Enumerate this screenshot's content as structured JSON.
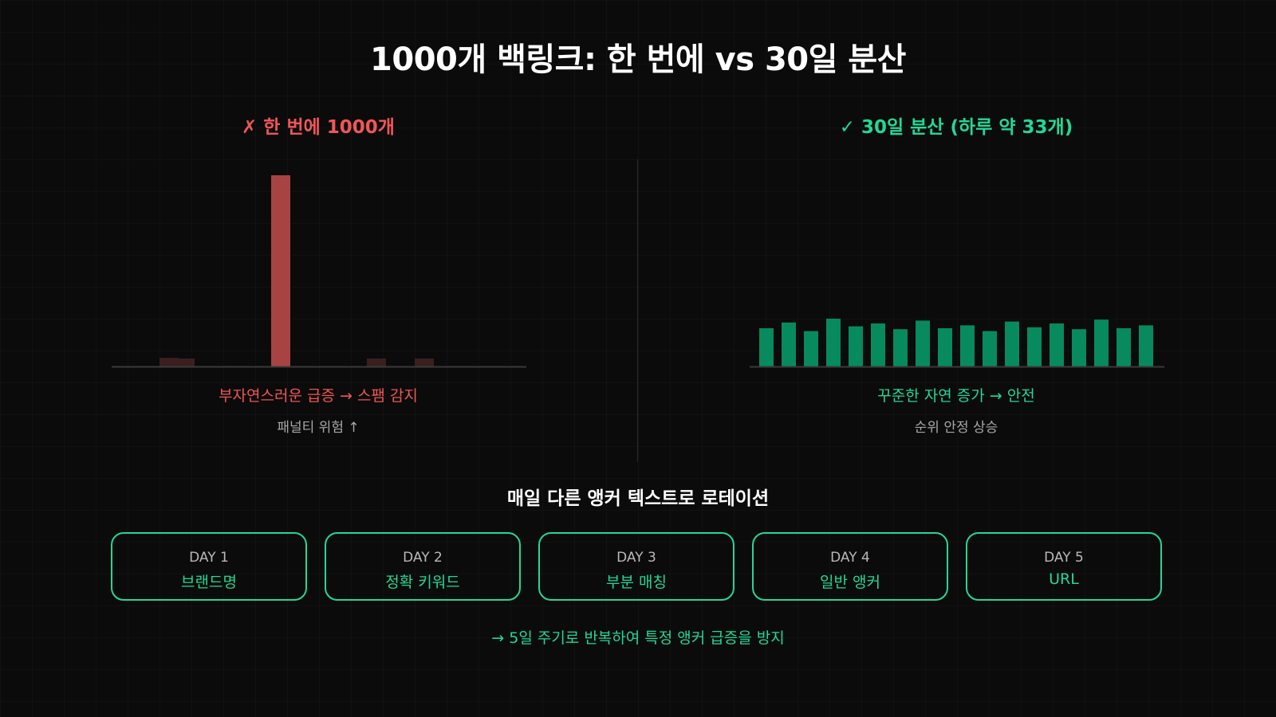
{
  "title": "1000개 백링크: 한 번에 vs 30일 분산",
  "left": {
    "heading": "✗ 한 번에 1000개",
    "caption": "부자연스러운 급증 → 스팸 감지",
    "subcaption": "패널티 위험 ↑"
  },
  "right": {
    "heading": "✓ 30일 분산 (하루 약 33개)",
    "caption": "꾸준한 자연 증가 → 안전",
    "subcaption": "순위 안정 상승"
  },
  "rotation": {
    "title": "매일 다른 앵커 텍스트로 로테이션",
    "days": [
      {
        "label": "DAY 1",
        "value": "브랜드명"
      },
      {
        "label": "DAY 2",
        "value": "정확 키워드"
      },
      {
        "label": "DAY 3",
        "value": "부분 매칭"
      },
      {
        "label": "DAY 4",
        "value": "일반 앵커"
      },
      {
        "label": "DAY 5",
        "value": "URL"
      }
    ],
    "footer": "→ 5일 주기로 반복하여 특정 앵커 급증을 방지"
  },
  "colors": {
    "bad": "#f05656",
    "bad_bar": "#a84343",
    "bad_bar_faint": "#3b1f1f",
    "good": "#22d897",
    "good_bar": "#078a5e",
    "axis": "#3a3a3a"
  },
  "chart_data": [
    {
      "type": "bar",
      "title": "✗ 한 번에 1000개",
      "ylim": [
        0,
        1000
      ],
      "values": [
        0,
        0,
        0,
        45,
        30,
        0,
        0,
        0,
        0,
        0,
        1000,
        0,
        0,
        0,
        0,
        0,
        35,
        0,
        0,
        20,
        0,
        0,
        0,
        0,
        0
      ],
      "highlight_index": 10
    },
    {
      "type": "bar",
      "title": "✓ 30일 분산 (하루 약 33개)",
      "ylim": [
        0,
        1000
      ],
      "values": [
        200,
        230,
        185,
        250,
        210,
        225,
        195,
        240,
        200,
        215,
        185,
        235,
        205,
        225,
        195,
        245,
        200,
        215
      ]
    }
  ]
}
